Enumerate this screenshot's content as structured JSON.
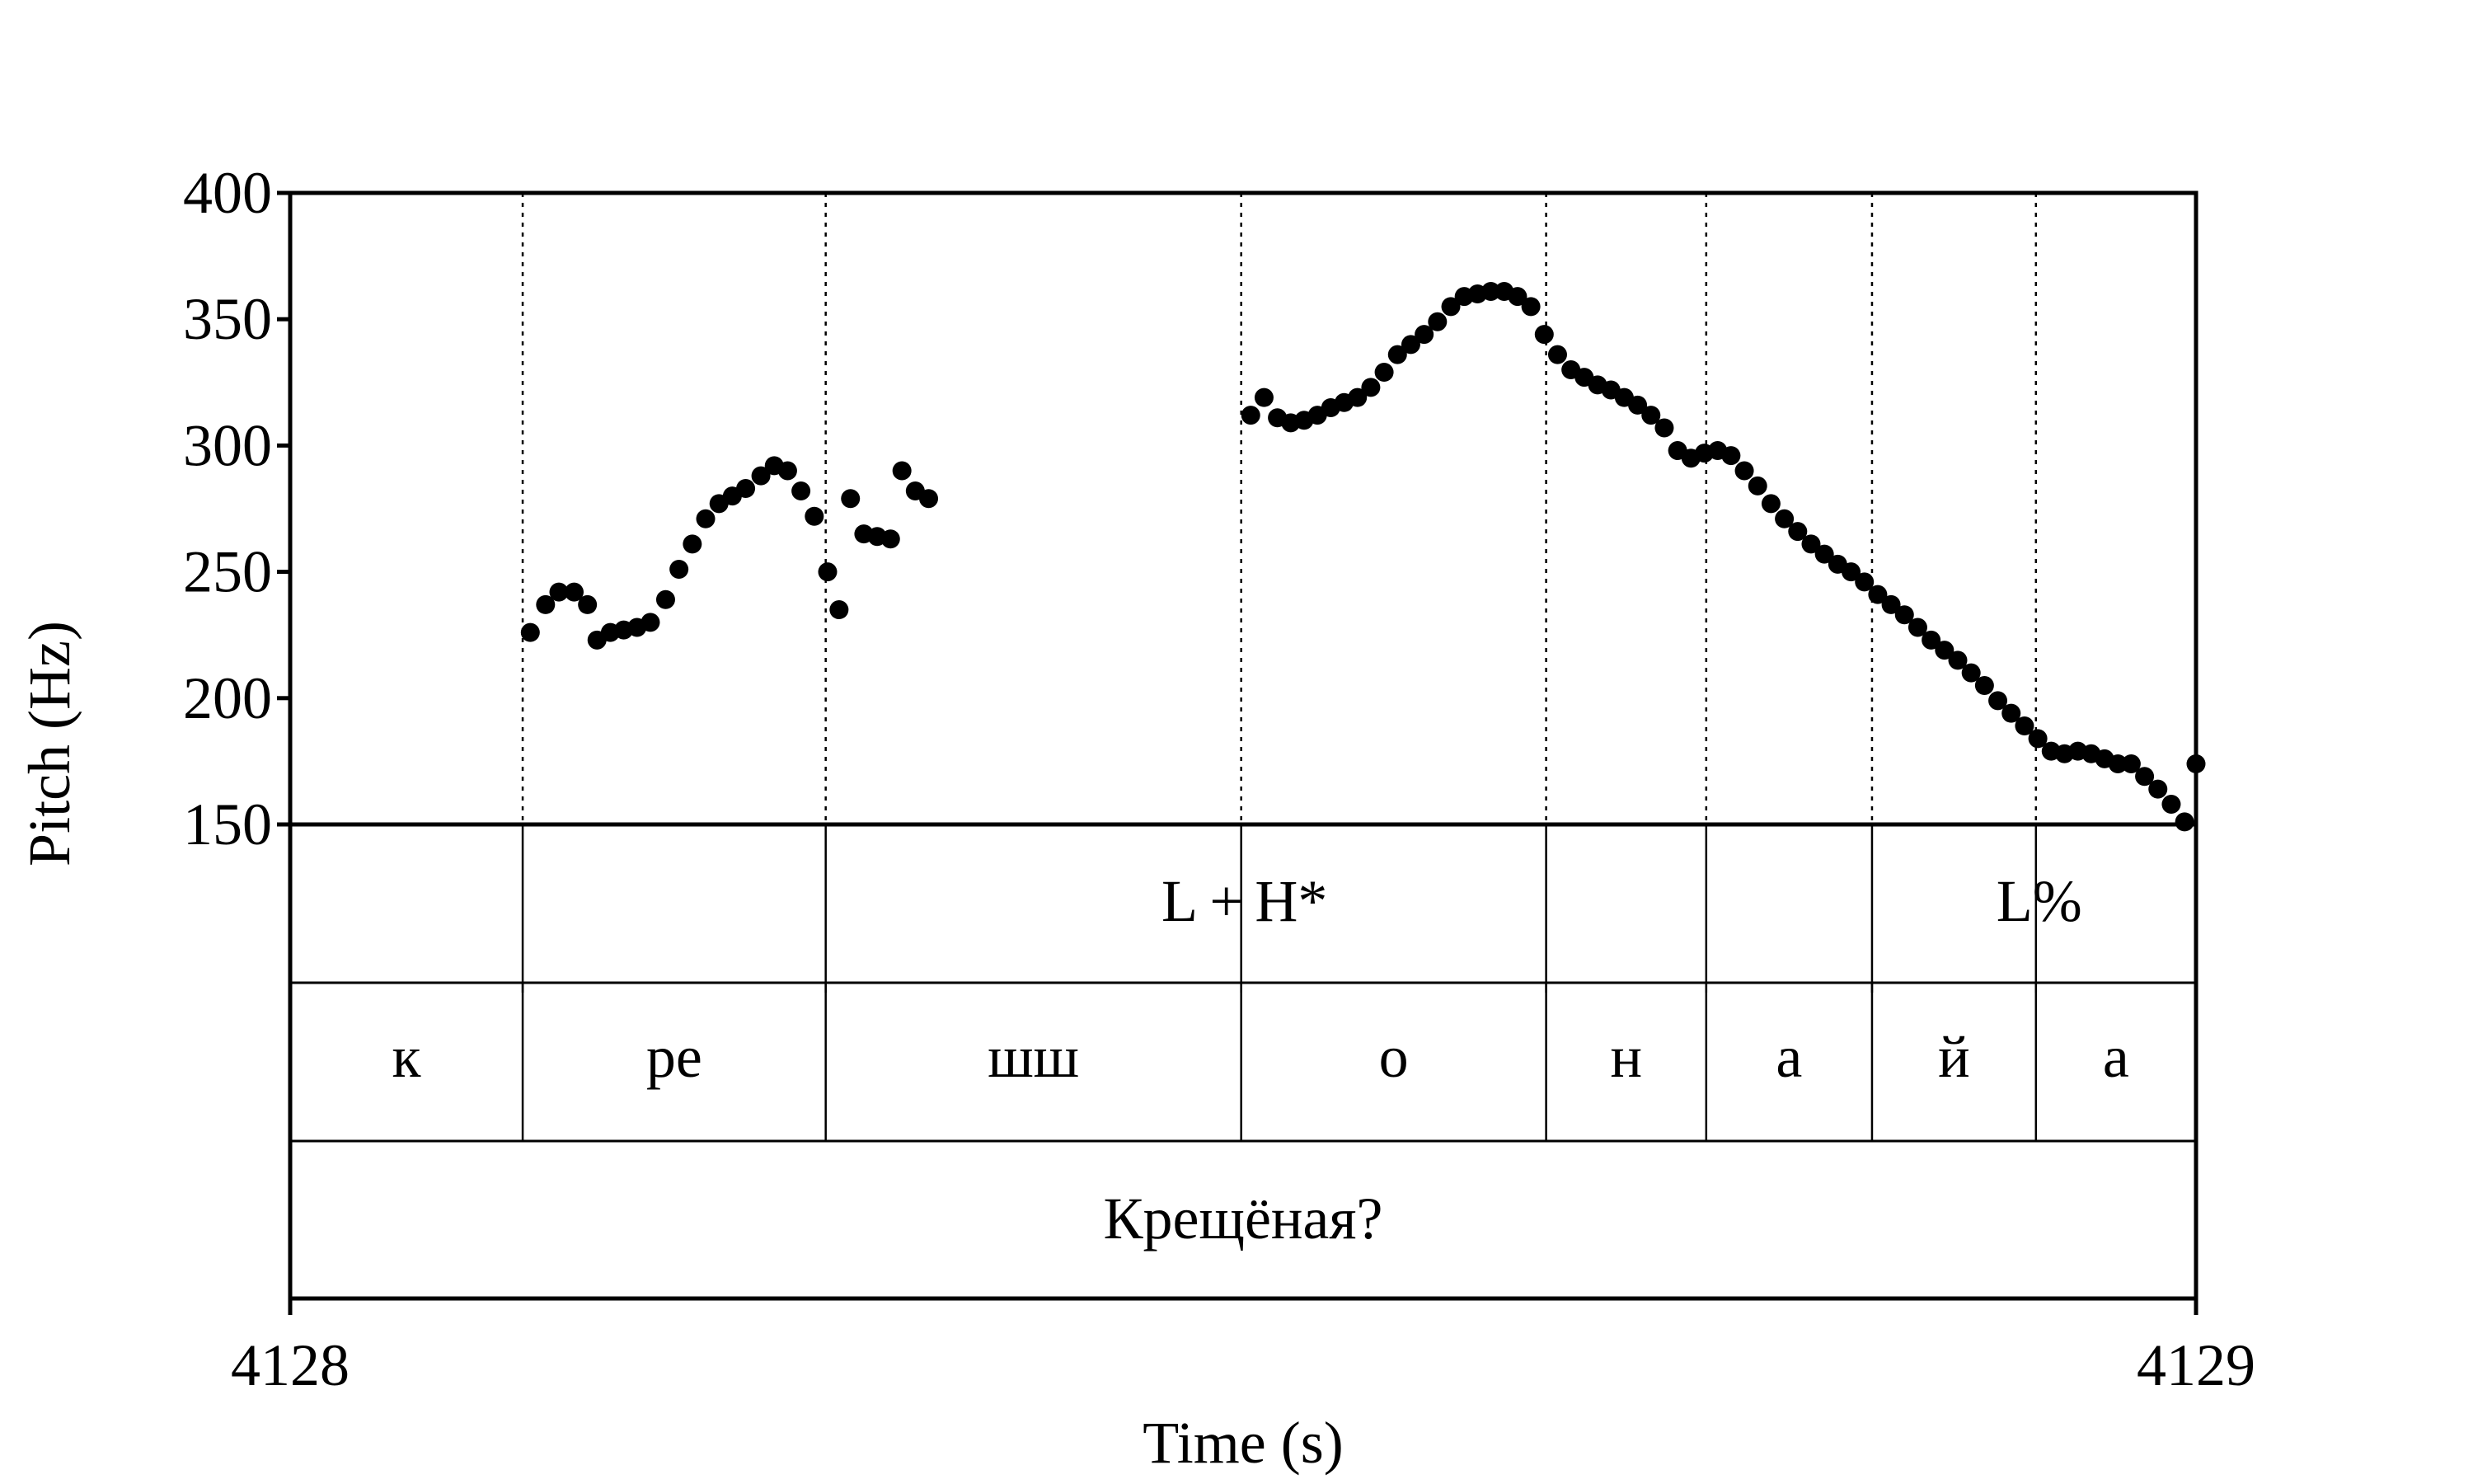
{
  "chart_data": {
    "type": "scatter",
    "xlabel": "Time (s)",
    "ylabel": "Pitch (Hz)",
    "xlim": [
      4128,
      4129
    ],
    "ylim": [
      150,
      400
    ],
    "yticks": [
      150,
      200,
      250,
      300,
      350,
      400
    ],
    "xticks": [
      4128,
      4129
    ],
    "x_tick_labels": [
      "4128",
      "4129"
    ],
    "grid": false,
    "boundaries": [
      4128.122,
      4128.281,
      4128.499,
      4128.659,
      4128.743,
      4128.83,
      4128.916
    ],
    "tiers": {
      "tones": [
        {
          "label": "L + H*",
          "time": 4128.499
        },
        {
          "label": "L%",
          "time": 4128.916
        }
      ],
      "segments": [
        {
          "label": "к",
          "start": 4128.0,
          "end": 4128.122
        },
        {
          "label": "ре",
          "start": 4128.122,
          "end": 4128.281
        },
        {
          "label": "шш",
          "start": 4128.281,
          "end": 4128.499
        },
        {
          "label": "о",
          "start": 4128.499,
          "end": 4128.659
        },
        {
          "label": "н",
          "start": 4128.659,
          "end": 4128.743
        },
        {
          "label": "а",
          "start": 4128.743,
          "end": 4128.83
        },
        {
          "label": "й",
          "start": 4128.83,
          "end": 4128.916
        },
        {
          "label": "а",
          "start": 4128.916,
          "end": 4129.0
        }
      ],
      "words": [
        {
          "label": "Крещёная?",
          "start": 4128.0,
          "end": 4129.0
        }
      ]
    },
    "series": [
      {
        "points": [
          [
            4128.126,
            226
          ],
          [
            4128.134,
            237
          ],
          [
            4128.141,
            242
          ],
          [
            4128.149,
            242
          ],
          [
            4128.156,
            237
          ],
          [
            4128.161,
            223
          ],
          [
            4128.168,
            226
          ],
          [
            4128.175,
            227
          ],
          [
            4128.182,
            228
          ],
          [
            4128.189,
            230
          ],
          [
            4128.197,
            239
          ],
          [
            4128.204,
            251
          ],
          [
            4128.211,
            261
          ],
          [
            4128.218,
            271
          ],
          [
            4128.225,
            277
          ],
          [
            4128.232,
            280
          ],
          [
            4128.239,
            283
          ],
          [
            4128.247,
            288
          ],
          [
            4128.254,
            292
          ],
          [
            4128.261,
            290
          ],
          [
            4128.268,
            282
          ],
          [
            4128.275,
            272
          ],
          [
            4128.282,
            250
          ],
          [
            4128.288,
            235
          ],
          [
            4128.294,
            279
          ],
          [
            4128.301,
            265
          ],
          [
            4128.308,
            264
          ],
          [
            4128.315,
            263
          ],
          [
            4128.321,
            290
          ],
          [
            4128.328,
            282
          ],
          [
            4128.335,
            279
          ],
          [
            4128.504,
            312
          ],
          [
            4128.511,
            319
          ],
          [
            4128.518,
            311
          ],
          [
            4128.525,
            309
          ],
          [
            4128.532,
            310
          ],
          [
            4128.539,
            312
          ],
          [
            4128.546,
            315
          ],
          [
            4128.553,
            317
          ],
          [
            4128.56,
            319
          ],
          [
            4128.567,
            323
          ],
          [
            4128.574,
            329
          ],
          [
            4128.581,
            336
          ],
          [
            4128.588,
            340
          ],
          [
            4128.595,
            344
          ],
          [
            4128.602,
            349
          ],
          [
            4128.609,
            355
          ],
          [
            4128.616,
            359
          ],
          [
            4128.623,
            360
          ],
          [
            4128.63,
            361
          ],
          [
            4128.637,
            361
          ],
          [
            4128.644,
            359
          ],
          [
            4128.651,
            355
          ],
          [
            4128.658,
            344
          ],
          [
            4128.665,
            336
          ],
          [
            4128.672,
            330
          ],
          [
            4128.679,
            327
          ],
          [
            4128.686,
            324
          ],
          [
            4128.693,
            322
          ],
          [
            4128.7,
            319
          ],
          [
            4128.707,
            316
          ],
          [
            4128.714,
            312
          ],
          [
            4128.721,
            307
          ],
          [
            4128.728,
            298
          ],
          [
            4128.735,
            295
          ],
          [
            4128.742,
            297
          ],
          [
            4128.749,
            298
          ],
          [
            4128.756,
            296
          ],
          [
            4128.763,
            290
          ],
          [
            4128.77,
            284
          ],
          [
            4128.777,
            277
          ],
          [
            4128.784,
            271
          ],
          [
            4128.791,
            266
          ],
          [
            4128.798,
            261
          ],
          [
            4128.805,
            257
          ],
          [
            4128.812,
            253
          ],
          [
            4128.819,
            250
          ],
          [
            4128.826,
            246
          ],
          [
            4128.833,
            241
          ],
          [
            4128.84,
            237
          ],
          [
            4128.847,
            233
          ],
          [
            4128.854,
            228
          ],
          [
            4128.861,
            223
          ],
          [
            4128.868,
            219
          ],
          [
            4128.875,
            215
          ],
          [
            4128.882,
            210
          ],
          [
            4128.889,
            205
          ],
          [
            4128.896,
            199
          ],
          [
            4128.903,
            194
          ],
          [
            4128.91,
            189
          ],
          [
            4128.917,
            184
          ],
          [
            4128.924,
            179
          ],
          [
            4128.931,
            178
          ],
          [
            4128.938,
            179
          ],
          [
            4128.945,
            178
          ],
          [
            4128.952,
            176
          ],
          [
            4128.959,
            174
          ],
          [
            4128.966,
            174
          ],
          [
            4128.973,
            169
          ],
          [
            4128.98,
            164
          ],
          [
            4128.987,
            158
          ],
          [
            4128.994,
            151
          ],
          [
            4129.0,
            174
          ]
        ]
      }
    ]
  }
}
